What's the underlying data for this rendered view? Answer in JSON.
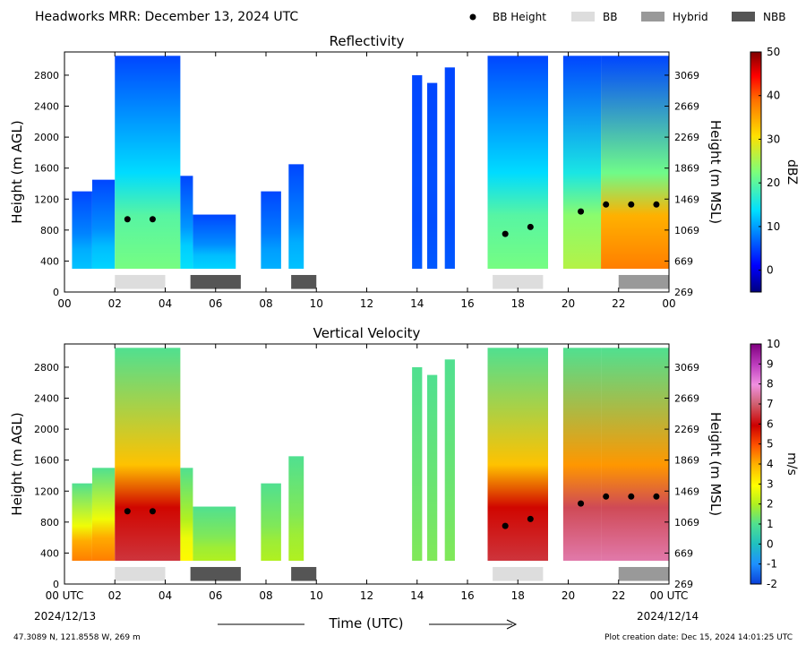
{
  "header": {
    "title": "Headworks MRR:  December 13, 2024 UTC",
    "legend": [
      {
        "label": "BB Height",
        "kind": "dot",
        "color": "#000000"
      },
      {
        "label": "BB",
        "kind": "box",
        "color": "#dddddd"
      },
      {
        "label": "Hybrid",
        "kind": "box",
        "color": "#999999"
      },
      {
        "label": "NBB",
        "kind": "box",
        "color": "#555555"
      }
    ]
  },
  "footer": {
    "location": "47.3089 N, 121.8558 W, 269 m",
    "creation": "Plot creation date: Dec 15, 2024 14:01:25 UTC",
    "xlabel": "Time (UTC)",
    "start_date": "2024/12/13",
    "end_date": "2024/12/14"
  },
  "chart_data": [
    {
      "type": "heatmap",
      "title": "Reflectivity",
      "ylabel": "Height (m AGL)",
      "ylabel_right": "Height (m MSL)",
      "xlim": [
        0,
        24
      ],
      "ylim": [
        0,
        3100
      ],
      "x_ticks": [
        "00",
        "02",
        "04",
        "06",
        "08",
        "10",
        "12",
        "14",
        "16",
        "18",
        "20",
        "22",
        "00"
      ],
      "y_ticks": [
        0,
        400,
        800,
        1200,
        1600,
        2000,
        2400,
        2800
      ],
      "y_ticks_right": [
        "269",
        "669",
        "1069",
        "1469",
        "1869",
        "2269",
        "2669",
        "3069"
      ],
      "colorbar": {
        "label": "dBZ",
        "range": [
          -5,
          50
        ],
        "ticks": [
          "0",
          "10",
          "20",
          "30",
          "40",
          "50"
        ],
        "tick_values": [
          0,
          10,
          20,
          30,
          40,
          50
        ],
        "palette": "jet"
      },
      "bright_band_heights": [
        [
          2.5,
          940
        ],
        [
          3.5,
          940
        ],
        [
          17.5,
          750
        ],
        [
          18.5,
          840
        ],
        [
          20.5,
          1040
        ],
        [
          21.5,
          1130
        ],
        [
          22.5,
          1130
        ],
        [
          23.5,
          1130
        ]
      ],
      "bb_types": [
        {
          "start": 2,
          "end": 4,
          "type": "BB"
        },
        {
          "start": 5,
          "end": 7,
          "type": "NBB"
        },
        {
          "start": 9,
          "end": 10,
          "type": "NBB"
        },
        {
          "start": 17,
          "end": 19,
          "type": "BB"
        },
        {
          "start": 22,
          "end": 24,
          "type": "Hybrid"
        }
      ],
      "echo_segments": [
        {
          "start": 0.3,
          "end": 1.1,
          "top": 1300,
          "peak": 12
        },
        {
          "start": 1.1,
          "end": 2.0,
          "top": 1450,
          "peak": 13
        },
        {
          "start": 2.0,
          "end": 4.6,
          "top": 3050,
          "peak": 22
        },
        {
          "start": 4.6,
          "end": 5.1,
          "top": 1500,
          "peak": 14
        },
        {
          "start": 5.1,
          "end": 6.8,
          "top": 1000,
          "peak": 13
        },
        {
          "start": 7.8,
          "end": 8.6,
          "top": 1300,
          "peak": 11
        },
        {
          "start": 8.9,
          "end": 9.5,
          "top": 1650,
          "peak": 12
        },
        {
          "start": 13.8,
          "end": 14.2,
          "top": 2800,
          "peak": 6
        },
        {
          "start": 14.4,
          "end": 14.8,
          "top": 2700,
          "peak": 6
        },
        {
          "start": 15.1,
          "end": 15.5,
          "top": 2900,
          "peak": 6
        },
        {
          "start": 16.8,
          "end": 19.2,
          "top": 3050,
          "peak": 22
        },
        {
          "start": 19.8,
          "end": 21.3,
          "top": 3050,
          "peak": 26
        },
        {
          "start": 21.3,
          "end": 24.0,
          "top": 3050,
          "peak": 38
        }
      ]
    },
    {
      "type": "heatmap",
      "title": "Vertical Velocity",
      "ylabel": "Height (m AGL)",
      "ylabel_right": "Height (m MSL)",
      "xlim": [
        0,
        24
      ],
      "ylim": [
        0,
        3100
      ],
      "x_ticks": [
        "00 UTC",
        "02",
        "04",
        "06",
        "08",
        "10",
        "12",
        "14",
        "16",
        "18",
        "20",
        "22",
        "00 UTC"
      ],
      "y_ticks": [
        0,
        400,
        800,
        1200,
        1600,
        2000,
        2400,
        2800
      ],
      "y_ticks_right": [
        "269",
        "669",
        "1069",
        "1469",
        "1869",
        "2269",
        "2669",
        "3069"
      ],
      "colorbar": {
        "label": "m/s",
        "range": [
          -2,
          10
        ],
        "ticks": [
          "-2",
          "-1",
          "0",
          "1",
          "2",
          "3",
          "4",
          "5",
          "6",
          "7",
          "8",
          "9",
          "10"
        ],
        "tick_values": [
          -2,
          -1,
          0,
          1,
          2,
          3,
          4,
          5,
          6,
          7,
          8,
          9,
          10
        ],
        "palette": "velocity"
      },
      "bright_band_heights": [
        [
          2.5,
          940
        ],
        [
          3.5,
          940
        ],
        [
          17.5,
          750
        ],
        [
          18.5,
          840
        ],
        [
          20.5,
          1040
        ],
        [
          21.5,
          1130
        ],
        [
          22.5,
          1130
        ],
        [
          23.5,
          1130
        ]
      ],
      "bb_types": [
        {
          "start": 2,
          "end": 4,
          "type": "BB"
        },
        {
          "start": 5,
          "end": 7,
          "type": "NBB"
        },
        {
          "start": 9,
          "end": 10,
          "type": "NBB"
        },
        {
          "start": 17,
          "end": 19,
          "type": "BB"
        },
        {
          "start": 22,
          "end": 24,
          "type": "Hybrid"
        }
      ],
      "echo_segments": [
        {
          "start": 0.3,
          "end": 1.1,
          "top": 1300,
          "peak": 4.5
        },
        {
          "start": 1.1,
          "end": 2.0,
          "top": 1500,
          "peak": 4.5
        },
        {
          "start": 2.0,
          "end": 4.6,
          "top": 3050,
          "peak": 6.5
        },
        {
          "start": 4.6,
          "end": 5.1,
          "top": 1500,
          "peak": 3.0
        },
        {
          "start": 5.1,
          "end": 6.8,
          "top": 1000,
          "peak": 2.0
        },
        {
          "start": 7.8,
          "end": 8.6,
          "top": 1300,
          "peak": 2.0
        },
        {
          "start": 8.9,
          "end": 9.5,
          "top": 1650,
          "peak": 2.0
        },
        {
          "start": 13.8,
          "end": 14.2,
          "top": 2800,
          "peak": 1.5
        },
        {
          "start": 14.4,
          "end": 14.8,
          "top": 2700,
          "peak": 1.5
        },
        {
          "start": 15.1,
          "end": 15.5,
          "top": 2900,
          "peak": 1.5
        },
        {
          "start": 16.8,
          "end": 19.2,
          "top": 3050,
          "peak": 6.5
        },
        {
          "start": 19.8,
          "end": 21.3,
          "top": 3050,
          "peak": 7.5
        },
        {
          "start": 21.3,
          "end": 24.0,
          "top": 3050,
          "peak": 7.5
        }
      ]
    }
  ]
}
